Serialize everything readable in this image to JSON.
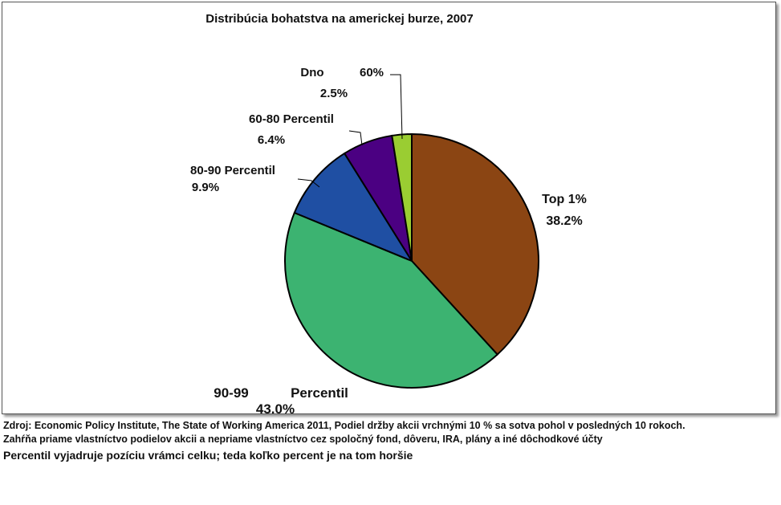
{
  "chart_data": {
    "type": "pie",
    "title": "Distribúcia bohatstva na americkej burze, 2007",
    "start_angle_deg": 0,
    "direction": "clockwise",
    "slices": [
      {
        "name_line1": "Top 1%",
        "name_line2": "",
        "value": 38.2,
        "value_label": "38.2%",
        "color": "#8B4513"
      },
      {
        "name_line1": "90-99",
        "name_line2": "Percentil",
        "value": 43.0,
        "value_label": "43.0%",
        "color": "#3CB371"
      },
      {
        "name_line1": "80-90 Percentil",
        "name_line2": "",
        "value": 9.9,
        "value_label": "9.9%",
        "color": "#1F4FA3"
      },
      {
        "name_line1": "60-80 Percentil",
        "name_line2": "",
        "value": 6.4,
        "value_label": "6.4%",
        "color": "#4B0082"
      },
      {
        "name_line1": "Dno",
        "name_line2": "60%",
        "value": 2.5,
        "value_label": "2.5%",
        "color": "#9ACD32"
      }
    ]
  },
  "notes": {
    "source": "Zdroj: Economic Policy Institute, The State of Working America 2011, Podiel držby akcii vrchnými 10 % sa sotva pohol v posledných 10 rokoch.",
    "scope": "Zahŕňa priame vlastníctvo podielov akcii a nepriame vlastníctvo cez spoločný fond, dôveru, IRA, plány a iné dôchodkové účty",
    "definition": "Percentil vyjadruje pozíciu vrámci celku; teda koľko percent je na tom horšie"
  }
}
